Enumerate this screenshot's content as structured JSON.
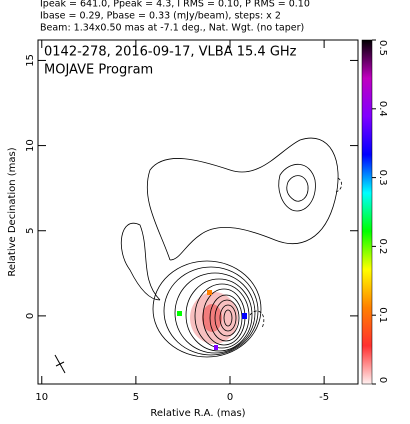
{
  "chart_data": {
    "type": "contour",
    "header": [
      "Ipeak = 641.0, Ppeak = 4.3, I RMS = 0.10, P RMS = 0.10",
      "Ibase = 0.29, Pbase = 0.33 (mJy/beam), steps: x 2",
      "Beam: 1.34x0.50 mas at -7.1 deg., Nat. Wgt. (no taper)"
    ],
    "annotations": [
      "0142-278, 2016-09-17, VLBA 15.4 GHz",
      "MOJAVE Program"
    ],
    "xlabel": "Relative R.A. (mas)",
    "ylabel": "Relative Decination (mas)",
    "xlim": [
      10.2,
      -6.8
    ],
    "ylim": [
      -4,
      16.2
    ],
    "xticks": [
      10,
      5,
      0,
      -5
    ],
    "yticks": [
      0,
      5,
      10,
      15
    ],
    "colorbar": {
      "lim": [
        0,
        0.5
      ],
      "ticks": [
        0,
        0.1,
        0.2,
        0.3,
        0.4,
        0.5
      ],
      "colors": [
        "#fff0f0",
        "#ff3030",
        "#ff8000",
        "#ffff00",
        "#00ff00",
        "#00ffff",
        "#0000ff",
        "#8000ff",
        "#c000c0",
        "#000000"
      ]
    }
  }
}
